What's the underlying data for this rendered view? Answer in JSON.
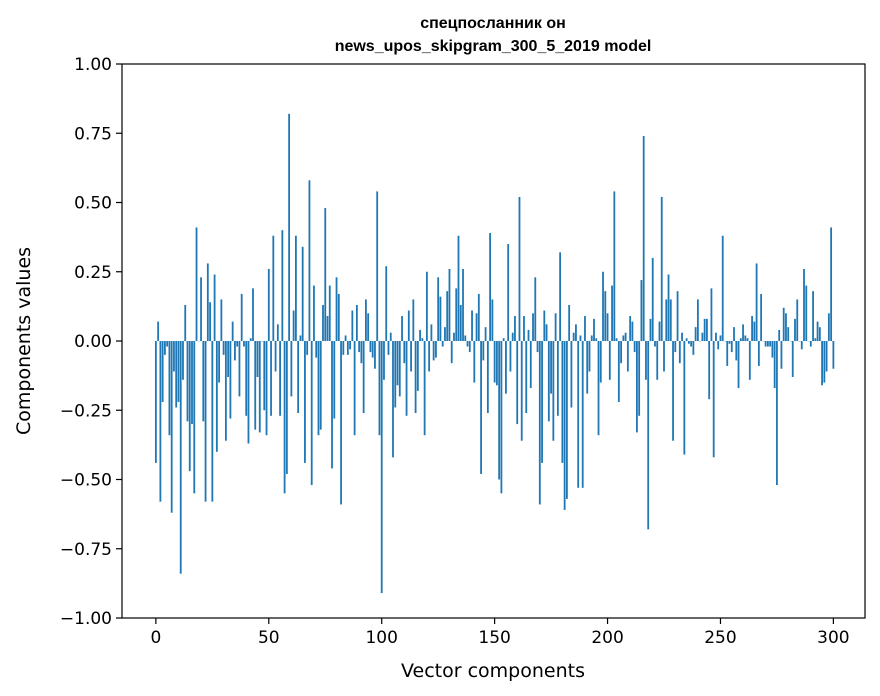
{
  "chart_data": {
    "type": "bar",
    "title": "спецпосланник он",
    "subtitle": "news_upos_skipgram_300_5_2019 model",
    "xlabel": "Vector components",
    "ylabel": "Components values",
    "xlim": [
      -15,
      314
    ],
    "ylim": [
      -1.0,
      1.0
    ],
    "xticks": [
      0,
      50,
      100,
      150,
      200,
      250,
      300
    ],
    "xtick_labels": [
      "0",
      "50",
      "100",
      "150",
      "200",
      "250",
      "300"
    ],
    "yticks": [
      1.0,
      0.75,
      0.5,
      0.25,
      0.0,
      -0.25,
      -0.5,
      -0.75,
      -1.0
    ],
    "ytick_labels": [
      "1.00",
      "0.75",
      "0.50",
      "0.25",
      "0.00",
      "−0.25",
      "−0.50",
      "−0.75",
      "−1.00"
    ],
    "grid": false,
    "bar_color": "#1f77b4",
    "values": [
      -0.44,
      0.07,
      -0.58,
      -0.22,
      -0.05,
      -0.02,
      -0.34,
      -0.62,
      -0.11,
      -0.24,
      -0.22,
      -0.84,
      -0.14,
      0.13,
      -0.29,
      -0.47,
      -0.3,
      -0.55,
      0.41,
      0.0,
      0.23,
      -0.29,
      -0.58,
      0.28,
      0.14,
      -0.58,
      0.24,
      -0.4,
      -0.15,
      0.15,
      -0.05,
      -0.36,
      -0.13,
      -0.28,
      0.07,
      -0.07,
      -0.02,
      -0.2,
      0.17,
      -0.02,
      -0.27,
      -0.37,
      0.01,
      0.19,
      -0.32,
      -0.13,
      -0.33,
      0.0,
      -0.25,
      -0.34,
      0.26,
      -0.27,
      0.38,
      -0.11,
      0.06,
      -0.27,
      0.4,
      -0.55,
      -0.48,
      0.82,
      -0.2,
      0.11,
      0.38,
      -0.26,
      0.02,
      0.34,
      -0.44,
      -0.05,
      0.58,
      -0.52,
      0.2,
      -0.06,
      -0.34,
      -0.32,
      0.13,
      0.48,
      0.09,
      0.2,
      -0.46,
      -0.28,
      0.23,
      0.17,
      -0.59,
      -0.05,
      0.02,
      -0.05,
      -0.03,
      0.11,
      -0.34,
      0.13,
      -0.04,
      -0.08,
      -0.26,
      0.15,
      0.1,
      -0.04,
      -0.06,
      -0.1,
      0.54,
      -0.34,
      -0.91,
      -0.14,
      0.27,
      -0.05,
      0.03,
      -0.42,
      -0.24,
      -0.16,
      -0.2,
      0.09,
      -0.08,
      -0.27,
      0.11,
      -0.11,
      0.15,
      -0.26,
      -0.18,
      0.04,
      0.01,
      -0.34,
      0.25,
      -0.11,
      0.06,
      -0.07,
      -0.06,
      0.23,
      0.16,
      -0.02,
      0.05,
      0.18,
      0.26,
      -0.08,
      0.03,
      0.19,
      0.38,
      0.13,
      0.26,
      0.02,
      -0.02,
      -0.04,
      0.11,
      -0.15,
      0.1,
      0.17,
      -0.48,
      -0.07,
      0.05,
      -0.26,
      0.39,
      0.15,
      -0.15,
      -0.16,
      -0.5,
      -0.55,
      0.01,
      -0.19,
      0.35,
      -0.11,
      0.03,
      0.09,
      -0.3,
      0.52,
      -0.36,
      0.09,
      -0.26,
      0.04,
      -0.17,
      0.1,
      0.23,
      -0.04,
      -0.59,
      -0.44,
      0.11,
      0.06,
      -0.29,
      -0.19,
      -0.36,
      0.1,
      -0.27,
      0.32,
      -0.44,
      -0.61,
      -0.57,
      0.13,
      -0.24,
      0.03,
      0.06,
      -0.53,
      0.02,
      -0.53,
      0.09,
      -0.19,
      -0.11,
      0.02,
      0.08,
      0.01,
      -0.34,
      -0.15,
      0.25,
      0.18,
      0.1,
      -0.14,
      0.2,
      0.54,
      0.01,
      -0.22,
      -0.08,
      0.02,
      0.03,
      -0.11,
      0.09,
      0.07,
      -0.04,
      -0.33,
      -0.27,
      0.22,
      0.74,
      -0.14,
      -0.68,
      0.08,
      0.3,
      -0.02,
      -0.14,
      0.07,
      0.52,
      -0.11,
      0.15,
      0.24,
      0.15,
      -0.36,
      -0.04,
      0.18,
      -0.08,
      0.03,
      -0.41,
      0.01,
      -0.01,
      -0.02,
      -0.05,
      0.05,
      0.15,
      0.0,
      0.03,
      0.08,
      0.08,
      -0.21,
      0.19,
      -0.42,
      0.03,
      -0.03,
      0.02,
      0.38,
      0.0,
      -0.09,
      -0.01,
      -0.04,
      0.05,
      -0.07,
      -0.17,
      0.01,
      0.06,
      0.02,
      0.01,
      -0.14,
      0.09,
      0.07,
      0.28,
      -0.09,
      0.17,
      0.0,
      -0.02,
      -0.02,
      -0.02,
      -0.06,
      -0.17,
      -0.52,
      0.04,
      -0.1,
      0.12,
      0.1,
      0.05,
      0.0,
      -0.13,
      0.08,
      0.15,
      0.0,
      -0.03,
      0.26,
      0.2,
      0.0,
      -0.02,
      0.18,
      0.01,
      0.07,
      0.05,
      -0.16,
      -0.15,
      -0.11,
      0.1,
      0.41,
      -0.1
    ]
  }
}
